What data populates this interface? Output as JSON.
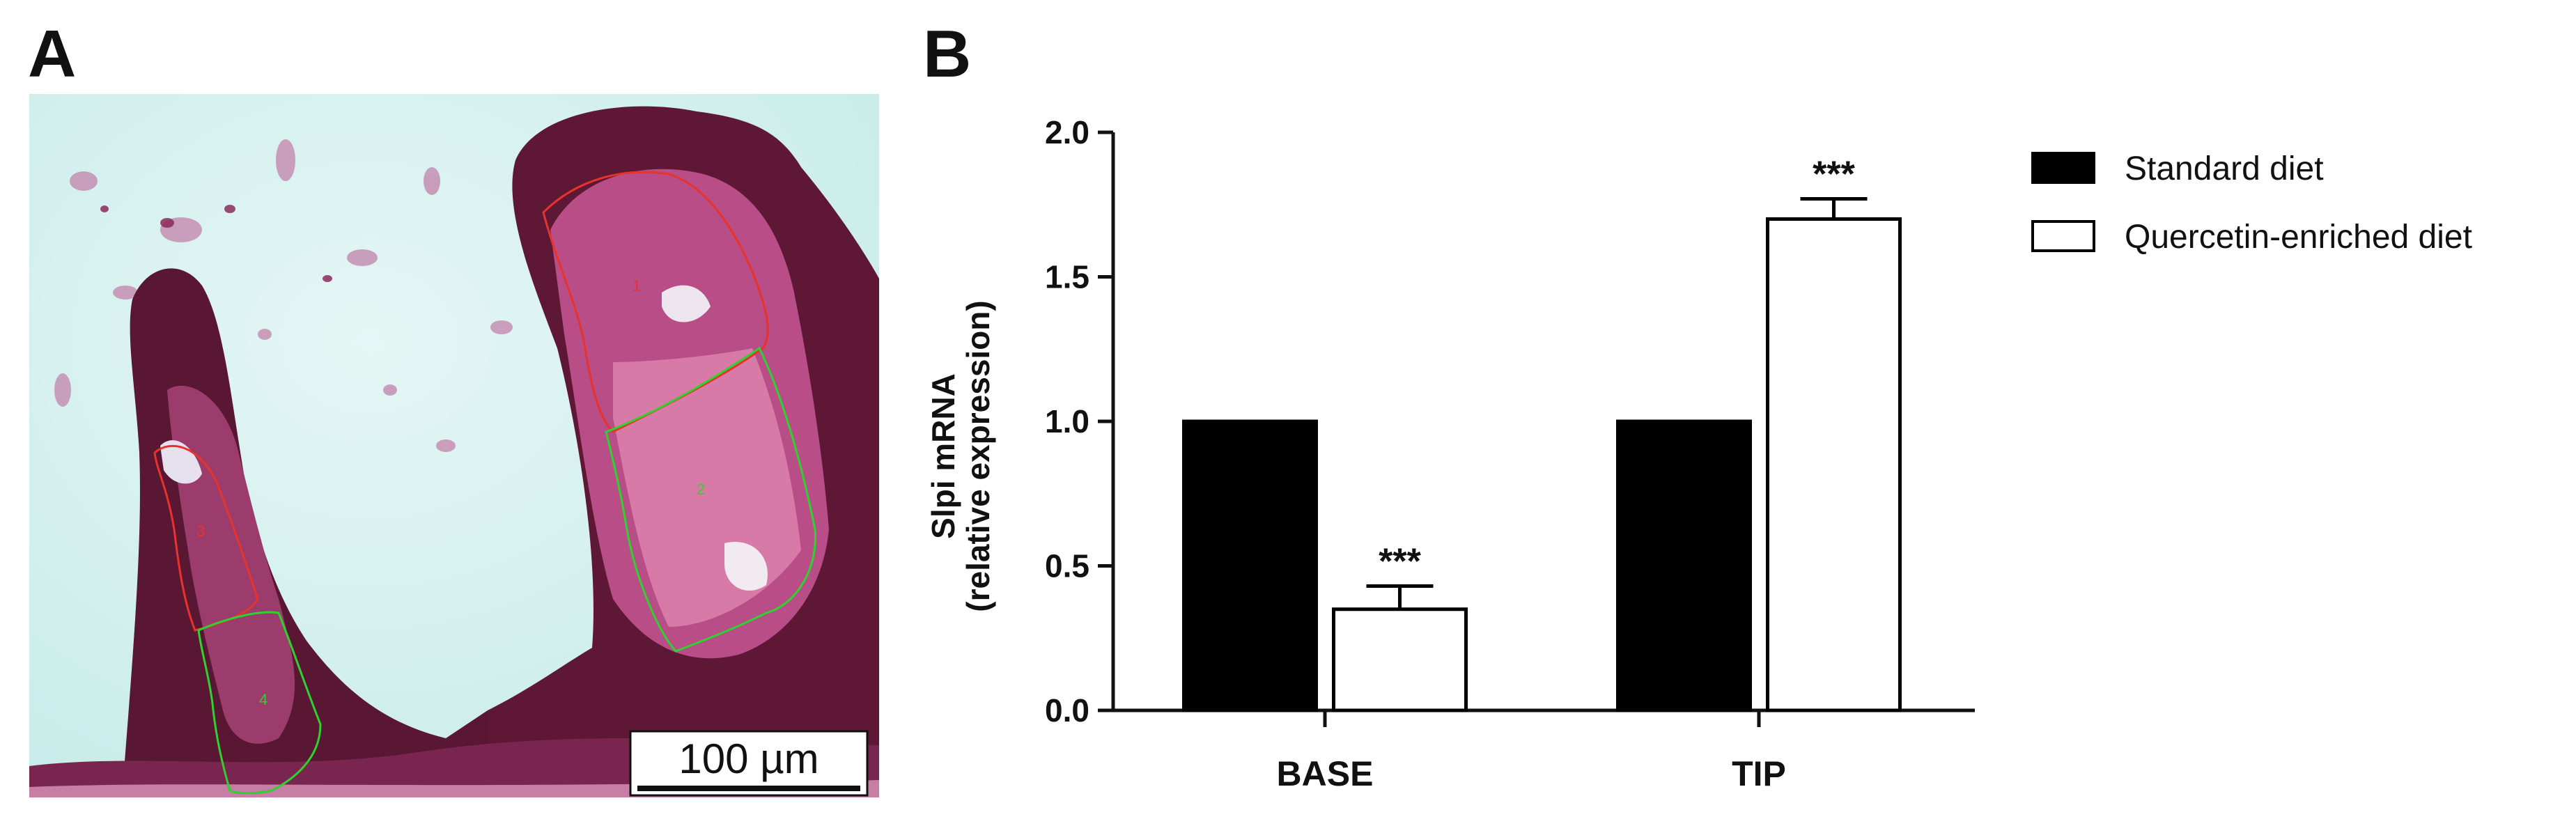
{
  "panel_a": {
    "label": "A",
    "scale_bar_label": "100 µm",
    "roi_labels": [
      "1",
      "2",
      "3",
      "4"
    ],
    "roi_colors": {
      "red": "#e8332a",
      "green": "#2fd12f"
    }
  },
  "panel_b": {
    "label": "B"
  },
  "chart_data": {
    "type": "bar",
    "title": "",
    "xlabel": "",
    "ylabel": "Slpi mRNA",
    "ylabel_line2": "(relative expression)",
    "ylim": [
      0,
      2.0
    ],
    "yticks": [
      "0.0",
      "0.5",
      "1.0",
      "1.5",
      "2.0"
    ],
    "categories": [
      "BASE",
      "TIP"
    ],
    "series": [
      {
        "name": "Standard diet",
        "values": [
          1.0,
          1.0
        ],
        "errors": [
          0,
          0
        ],
        "fill": "#000000"
      },
      {
        "name": "Quercetin-enriched diet",
        "values": [
          0.35,
          1.7
        ],
        "errors": [
          0.08,
          0.07
        ],
        "fill": "#ffffff"
      }
    ],
    "annotations": [
      {
        "category": "BASE",
        "series": "Quercetin-enriched diet",
        "text": "***"
      },
      {
        "category": "TIP",
        "series": "Quercetin-enriched diet",
        "text": "***"
      }
    ],
    "legend_position": "top-right",
    "grid": false
  }
}
